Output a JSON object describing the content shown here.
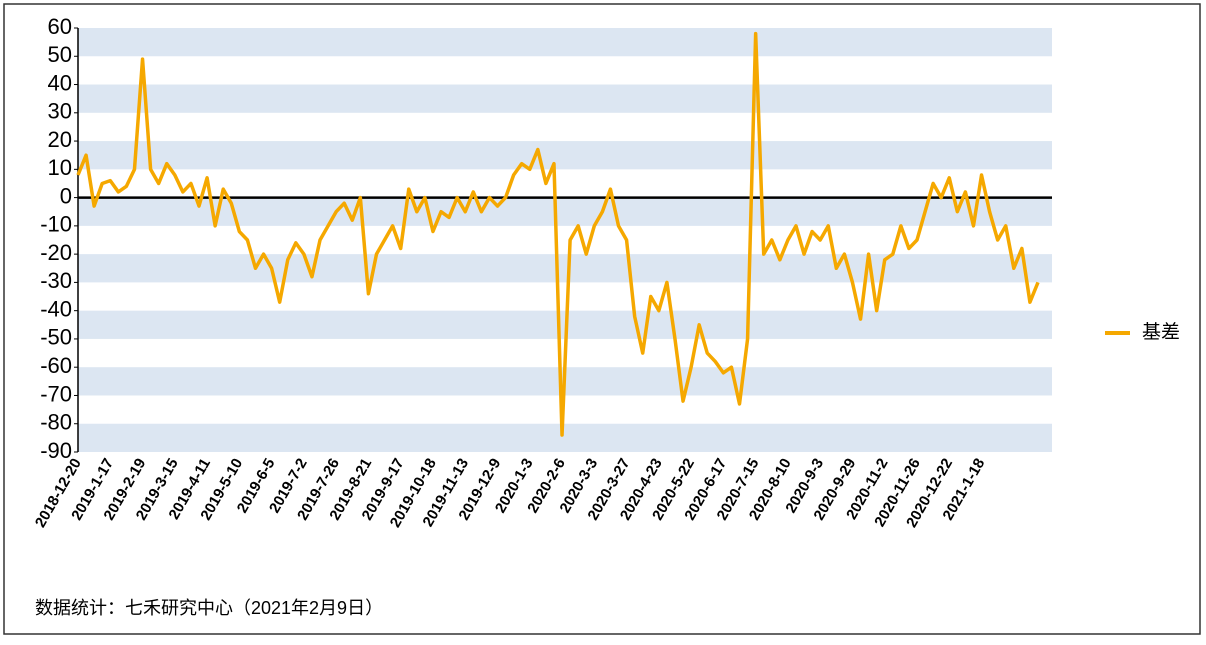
{
  "chart_data": {
    "type": "line",
    "categories": [
      "2018-12-20",
      null,
      null,
      null,
      "2019-1-17",
      null,
      null,
      null,
      "2019-2-19",
      null,
      null,
      null,
      "2019-3-15",
      null,
      null,
      null,
      "2019-4-11",
      null,
      null,
      null,
      "2019-5-10",
      null,
      null,
      null,
      "2019-6-5",
      null,
      null,
      null,
      "2019-7-2",
      null,
      null,
      null,
      "2019-7-26",
      null,
      null,
      null,
      "2019-8-21",
      null,
      null,
      null,
      "2019-9-17",
      null,
      null,
      null,
      "2019-10-18",
      null,
      null,
      null,
      "2019-11-13",
      null,
      null,
      null,
      "2019-12-9",
      null,
      null,
      null,
      "2020-1-3",
      null,
      null,
      null,
      "2020-2-6",
      null,
      null,
      null,
      "2020-3-3",
      null,
      null,
      null,
      "2020-3-27",
      null,
      null,
      null,
      "2020-4-23",
      null,
      null,
      null,
      "2020-5-22",
      null,
      null,
      null,
      "2020-6-17",
      null,
      null,
      null,
      "2020-7-15",
      null,
      null,
      null,
      "2020-8-10",
      null,
      null,
      null,
      "2020-9-3",
      null,
      null,
      null,
      "2020-9-29",
      null,
      null,
      null,
      "2020-11-2",
      null,
      null,
      null,
      "2020-11-26",
      null,
      null,
      null,
      "2020-12-22",
      null,
      null,
      null,
      "2021-1-18",
      null,
      null,
      null,
      null,
      null,
      null,
      null
    ],
    "series": [
      {
        "name": "基差",
        "color": "#f5a800",
        "values": [
          8,
          15,
          -3,
          5,
          6,
          2,
          4,
          10,
          49,
          10,
          5,
          12,
          8,
          2,
          5,
          -3,
          7,
          -10,
          3,
          -2,
          -12,
          -15,
          -25,
          -20,
          -25,
          -37,
          -22,
          -16,
          -20,
          -28,
          -15,
          -10,
          -5,
          -2,
          -8,
          0,
          -34,
          -20,
          -15,
          -10,
          -18,
          3,
          -5,
          0,
          -12,
          -5,
          -7,
          0,
          -5,
          2,
          -5,
          0,
          -3,
          0,
          8,
          12,
          10,
          17,
          5,
          12,
          -84,
          -15,
          -10,
          -20,
          -10,
          -5,
          3,
          -10,
          -15,
          -42,
          -55,
          -35,
          -40,
          -30,
          -50,
          -72,
          -60,
          -45,
          -55,
          -58,
          -62,
          -60,
          -73,
          -50,
          58,
          -20,
          -15,
          -22,
          -15,
          -10,
          -20,
          -12,
          -15,
          -10,
          -25,
          -20,
          -30,
          -43,
          -20,
          -40,
          -22,
          -20,
          -10,
          -18,
          -15,
          -5,
          5,
          0,
          7,
          -5,
          2,
          -10,
          8,
          -5,
          -15,
          -10,
          -25,
          -18,
          -37,
          -30
        ]
      }
    ],
    "ylim": [
      -90,
      60
    ],
    "yticks": [
      -90,
      -80,
      -70,
      -60,
      -50,
      -40,
      -30,
      -20,
      -10,
      0,
      10,
      20,
      30,
      40,
      50,
      60
    ],
    "grid": true,
    "legend": "right",
    "source": "数据统计：七禾研究中心（2021年2月9日）"
  }
}
